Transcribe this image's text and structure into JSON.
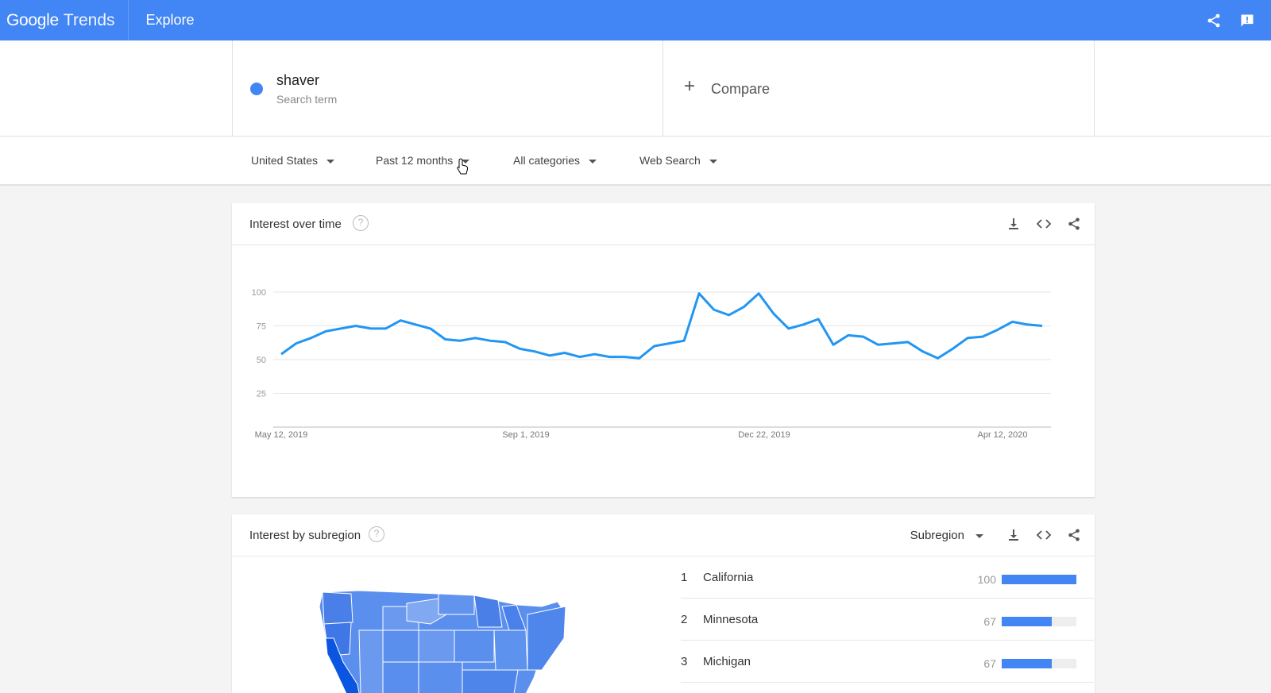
{
  "header": {
    "logo_google": "Google",
    "logo_trends": "Trends",
    "section": "Explore",
    "icons": [
      "share-icon",
      "feedback-icon"
    ]
  },
  "search": {
    "term": "shaver",
    "term_type": "Search term",
    "term_color": "#4285f4",
    "compare_label": "Compare"
  },
  "filters": {
    "region": "United States",
    "time": "Past 12 months",
    "category": "All categories",
    "property": "Web Search"
  },
  "interest_over_time": {
    "title": "Interest over time",
    "actions": [
      "download-icon",
      "embed-icon",
      "share-icon"
    ]
  },
  "chart_data": {
    "type": "line",
    "title": "",
    "xlabel": "",
    "ylabel": "",
    "ylim": [
      0,
      100
    ],
    "y_ticks": [
      "100",
      "75",
      "50",
      "25"
    ],
    "x_tick_labels": [
      "May 12, 2019",
      "Sep 1, 2019",
      "Dec 22, 2019",
      "Apr 12, 2020"
    ],
    "grid": true,
    "series": [
      {
        "color": "#2196f3",
        "values": [
          54,
          62,
          66,
          71,
          73,
          75,
          73,
          73,
          79,
          76,
          73,
          65,
          64,
          66,
          64,
          63,
          58,
          56,
          53,
          55,
          52,
          54,
          52,
          52,
          51,
          60,
          62,
          64,
          99,
          87,
          83,
          89,
          99,
          84,
          73,
          76,
          80,
          61,
          68,
          67,
          61,
          62,
          63,
          56,
          51,
          58,
          66,
          67,
          72,
          78,
          76,
          75
        ]
      }
    ]
  },
  "interest_by_subregion": {
    "title": "Interest by subregion",
    "selector": "Subregion",
    "actions": [
      "download-icon",
      "embed-icon",
      "share-icon"
    ],
    "rankings": [
      {
        "rank": "1",
        "name": "California",
        "value": "100",
        "fraction": 1.0
      },
      {
        "rank": "2",
        "name": "Minnesota",
        "value": "67",
        "fraction": 0.67
      },
      {
        "rank": "3",
        "name": "Michigan",
        "value": "67",
        "fraction": 0.67
      }
    ]
  }
}
